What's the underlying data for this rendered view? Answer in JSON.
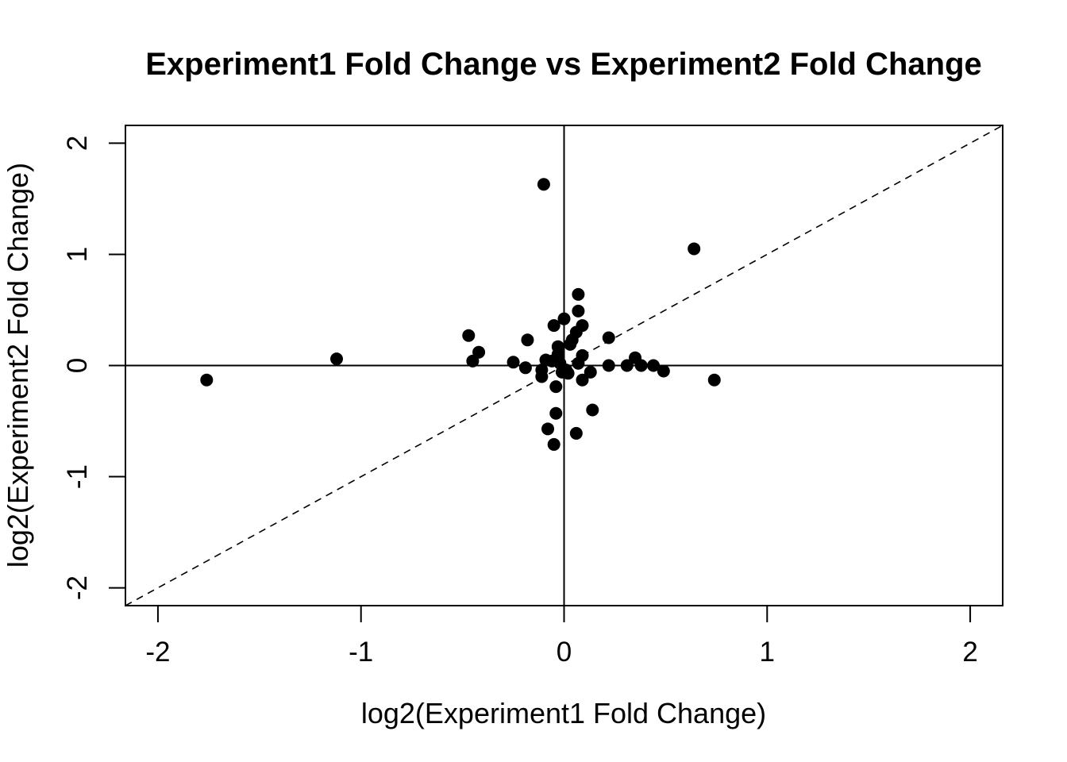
{
  "chart_data": {
    "type": "scatter",
    "title": "Experiment1 Fold Change vs Experiment2 Fold Change",
    "xlabel": "log2(Experiment1 Fold Change)",
    "ylabel": "log2(Experiment2 Fold Change)",
    "xlim": [
      -2.16,
      2.16
    ],
    "ylim": [
      -2.16,
      2.16
    ],
    "x_ticks": [
      -2,
      -1,
      0,
      1,
      2
    ],
    "y_ticks": [
      -2,
      -1,
      0,
      1,
      2
    ],
    "x_tick_labels": [
      "-2",
      "-1",
      "0",
      "1",
      "2"
    ],
    "y_tick_labels": [
      "-2",
      "-1",
      "0",
      "1",
      "2"
    ],
    "grid": false,
    "reference_lines": {
      "horizontal_at_y": 0,
      "vertical_at_x": 0,
      "diagonal": "y = x (dashed)"
    },
    "marker_color": "#000000",
    "points": [
      {
        "x": -1.76,
        "y": -0.13
      },
      {
        "x": -1.12,
        "y": 0.06
      },
      {
        "x": -0.47,
        "y": 0.27
      },
      {
        "x": -0.45,
        "y": 0.04
      },
      {
        "x": -0.42,
        "y": 0.12
      },
      {
        "x": -0.25,
        "y": 0.03
      },
      {
        "x": -0.19,
        "y": -0.02
      },
      {
        "x": -0.18,
        "y": 0.23
      },
      {
        "x": -0.11,
        "y": -0.04
      },
      {
        "x": -0.11,
        "y": -0.1
      },
      {
        "x": -0.1,
        "y": 1.63
      },
      {
        "x": -0.09,
        "y": 0.05
      },
      {
        "x": -0.08,
        "y": -0.57
      },
      {
        "x": -0.06,
        "y": 0.04
      },
      {
        "x": -0.05,
        "y": 0.36
      },
      {
        "x": -0.05,
        "y": -0.71
      },
      {
        "x": -0.04,
        "y": -0.43
      },
      {
        "x": -0.04,
        "y": -0.19
      },
      {
        "x": -0.03,
        "y": 0.17
      },
      {
        "x": -0.03,
        "y": 0.1
      },
      {
        "x": -0.02,
        "y": 0.02
      },
      {
        "x": -0.01,
        "y": -0.06
      },
      {
        "x": 0.0,
        "y": 0.42
      },
      {
        "x": 0.01,
        "y": -0.04
      },
      {
        "x": 0.02,
        "y": -0.07
      },
      {
        "x": 0.03,
        "y": 0.19
      },
      {
        "x": 0.04,
        "y": 0.23
      },
      {
        "x": 0.06,
        "y": 0.3
      },
      {
        "x": 0.06,
        "y": -0.61
      },
      {
        "x": 0.07,
        "y": 0.64
      },
      {
        "x": 0.07,
        "y": 0.49
      },
      {
        "x": 0.07,
        "y": 0.02
      },
      {
        "x": 0.09,
        "y": 0.36
      },
      {
        "x": 0.09,
        "y": 0.09
      },
      {
        "x": 0.09,
        "y": -0.13
      },
      {
        "x": 0.13,
        "y": -0.06
      },
      {
        "x": 0.14,
        "y": -0.4
      },
      {
        "x": 0.22,
        "y": 0.25
      },
      {
        "x": 0.22,
        "y": 0.0
      },
      {
        "x": 0.31,
        "y": 0.0
      },
      {
        "x": 0.35,
        "y": 0.07
      },
      {
        "x": 0.38,
        "y": 0.0
      },
      {
        "x": 0.44,
        "y": 0.0
      },
      {
        "x": 0.49,
        "y": -0.05
      },
      {
        "x": 0.64,
        "y": 1.05
      },
      {
        "x": 0.74,
        "y": -0.13
      }
    ]
  }
}
